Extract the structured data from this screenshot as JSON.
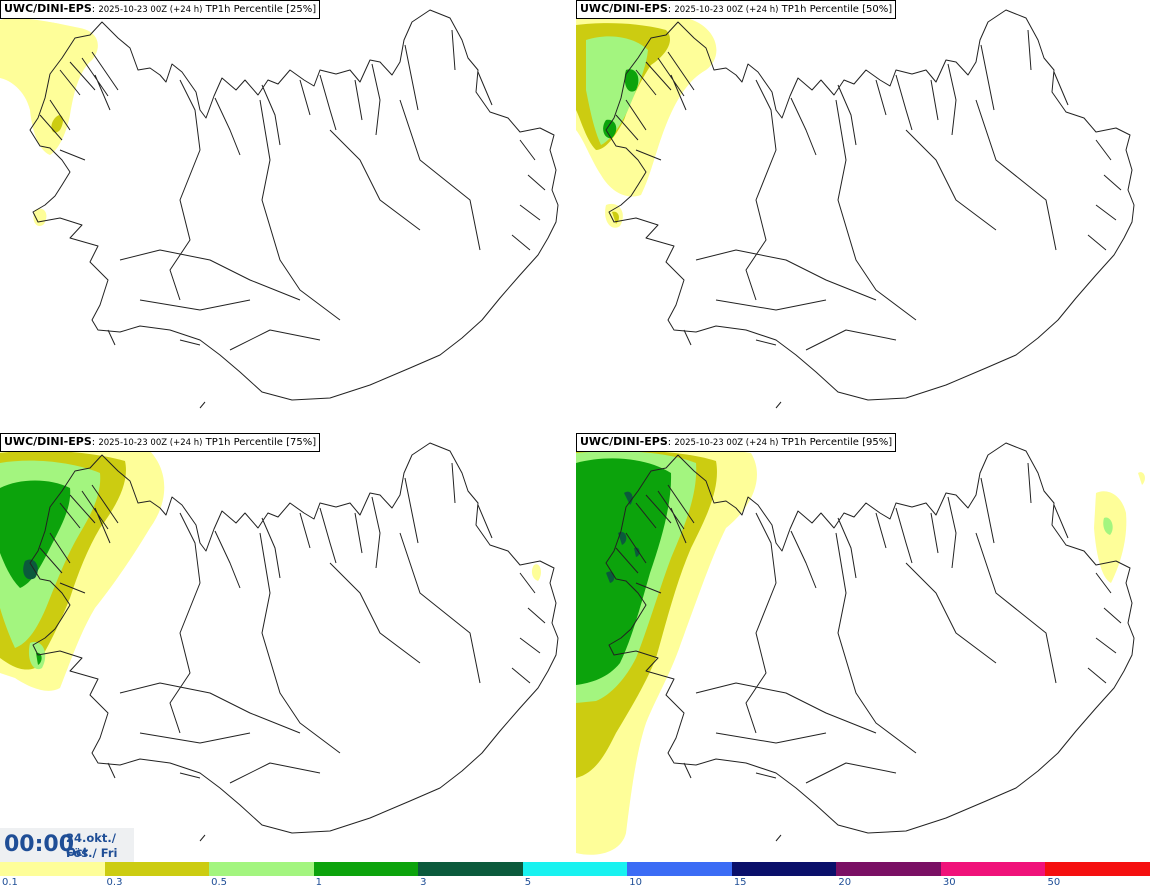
{
  "panels": [
    {
      "model": "UWC/DINI-EPS",
      "run": "2025-10-23 00Z (+24 h)",
      "product": "TP1h Percentile [25%]"
    },
    {
      "model": "UWC/DINI-EPS",
      "run": "2025-10-23 00Z (+24 h)",
      "product": "TP1h Percentile [50%]"
    },
    {
      "model": "UWC/DINI-EPS",
      "run": "2025-10-23 00Z (+24 h)",
      "product": "TP1h Percentile [75%]"
    },
    {
      "model": "UWC/DINI-EPS",
      "run": "2025-10-23 00Z (+24 h)",
      "product": "TP1h Percentile [95%]"
    }
  ],
  "valid_time": {
    "time": "00:00",
    "date_line1": "24.okt./ Oct",
    "date_line2": "Fös./ Fri"
  },
  "legend": {
    "colors": [
      "#fefe99",
      "#cccc11",
      "#a3f57f",
      "#0ca30c",
      "#0b5a3c",
      "#18f2f0",
      "#3b6cf5",
      "#0a0f6a",
      "#7a0f64",
      "#f0127a",
      "#f50f0f"
    ],
    "ticks": [
      "0.1",
      "0.3",
      "0.5",
      "1",
      "3",
      "5",
      "10",
      "15",
      "20",
      "30",
      "50"
    ]
  },
  "colors": {
    "c01": "#fefe99",
    "c03": "#cccc11",
    "c05": "#a3f57f",
    "c1": "#0ca30c",
    "c3": "#0b5a3c",
    "coast": "#222222"
  }
}
